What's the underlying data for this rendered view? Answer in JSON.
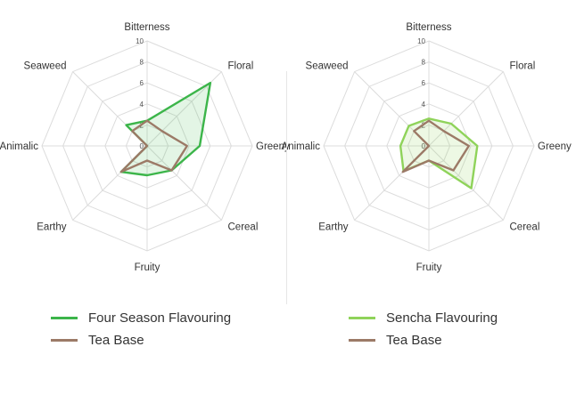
{
  "chart_data": [
    {
      "type": "radar",
      "axes": [
        "Bitterness",
        "Floral",
        "Greeny",
        "Cereal",
        "Fruity",
        "Earthy",
        "Animalic",
        "Seaweed"
      ],
      "rlim": [
        0,
        10
      ],
      "r_ticks": [
        "0",
        "2",
        "4",
        "6",
        "8",
        "10"
      ],
      "grid": true,
      "series": [
        {
          "name": "Four Season Flavouring",
          "color": "#3cb54a",
          "fill": "rgba(60,181,74,0.14)",
          "values": [
            2.4,
            8.5,
            5.0,
            3.3,
            2.8,
            3.5,
            0.0,
            2.8
          ]
        },
        {
          "name": "Tea Base",
          "color": "#9c7a67",
          "fill": "none",
          "values": [
            2.4,
            2.0,
            3.8,
            3.3,
            1.4,
            3.5,
            0.0,
            2.0
          ]
        }
      ],
      "legend": "bottom"
    },
    {
      "type": "radar",
      "axes": [
        "Bitterness",
        "Floral",
        "Greeny",
        "Cereal",
        "Fruity",
        "Earthy",
        "Animalic",
        "Seaweed"
      ],
      "rlim": [
        0,
        10
      ],
      "r_ticks": [
        "0",
        "2",
        "4",
        "6",
        "8",
        "10"
      ],
      "grid": true,
      "series": [
        {
          "name": "Sencha Flavouring",
          "color": "#8fd35a",
          "fill": "rgba(143,211,90,0.16)",
          "values": [
            2.6,
            3.0,
            4.6,
            5.7,
            1.4,
            3.4,
            2.7,
            2.7
          ]
        },
        {
          "name": "Tea Base",
          "color": "#9c7a67",
          "fill": "none",
          "values": [
            2.4,
            2.0,
            3.8,
            3.3,
            1.4,
            3.5,
            0.0,
            2.0
          ]
        }
      ],
      "legend": "bottom"
    }
  ]
}
